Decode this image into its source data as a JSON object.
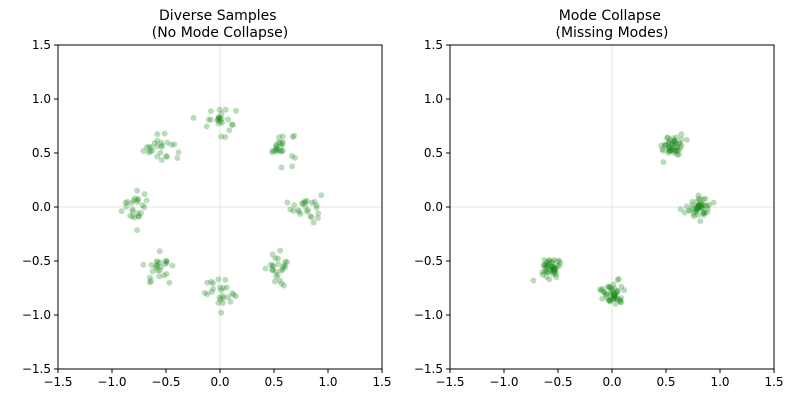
{
  "chart_data": [
    {
      "type": "scatter",
      "title": "Diverse Samples\n(No Mode Collapse)",
      "xlim": [
        -1.5,
        1.5
      ],
      "ylim": [
        -1.5,
        1.5
      ],
      "xticks": [
        -1.5,
        -1.0,
        -0.5,
        0.0,
        0.5,
        1.0,
        1.5
      ],
      "yticks": [
        -1.5,
        -1.0,
        -0.5,
        0.0,
        0.5,
        1.0,
        1.5
      ],
      "xtick_labels": [
        "−1.5",
        "−1.0",
        "−0.5",
        "0.0",
        "0.5",
        "1.0",
        "1.5"
      ],
      "ytick_labels": [
        "−1.5",
        "−1.0",
        "−0.5",
        "0.0",
        "0.5",
        "1.0",
        "1.5"
      ],
      "axis_lines_at_zero": true,
      "point_color": "#1f8b1f",
      "point_alpha": 0.3,
      "points_per_cluster": 25,
      "cluster_std": 0.07,
      "cluster_centers": [
        [
          0.8,
          0.0
        ],
        [
          0.566,
          0.566
        ],
        [
          0.0,
          0.8
        ],
        [
          -0.566,
          0.566
        ],
        [
          -0.8,
          0.0
        ],
        [
          -0.566,
          -0.566
        ],
        [
          0.0,
          -0.8
        ],
        [
          0.566,
          -0.566
        ]
      ]
    },
    {
      "type": "scatter",
      "title": "Mode Collapse\n(Missing Modes)",
      "xlim": [
        -1.5,
        1.5
      ],
      "ylim": [
        -1.5,
        1.5
      ],
      "xticks": [
        -1.5,
        -1.0,
        -0.5,
        0.0,
        0.5,
        1.0,
        1.5
      ],
      "yticks": [
        -1.5,
        -1.0,
        -0.5,
        0.0,
        0.5,
        1.0,
        1.5
      ],
      "xtick_labels": [
        "−1.5",
        "−1.0",
        "−0.5",
        "0.0",
        "0.5",
        "1.0",
        "1.5"
      ],
      "ytick_labels": [
        "−1.5",
        "−1.0",
        "−0.5",
        "0.0",
        "0.5",
        "1.0",
        "1.5"
      ],
      "axis_lines_at_zero": true,
      "point_color": "#1f8b1f",
      "point_alpha": 0.3,
      "points_per_cluster": 50,
      "cluster_std": 0.05,
      "cluster_centers": [
        [
          0.566,
          0.566
        ],
        [
          0.8,
          0.0
        ],
        [
          -0.566,
          -0.566
        ],
        [
          0.0,
          -0.8
        ]
      ]
    }
  ]
}
